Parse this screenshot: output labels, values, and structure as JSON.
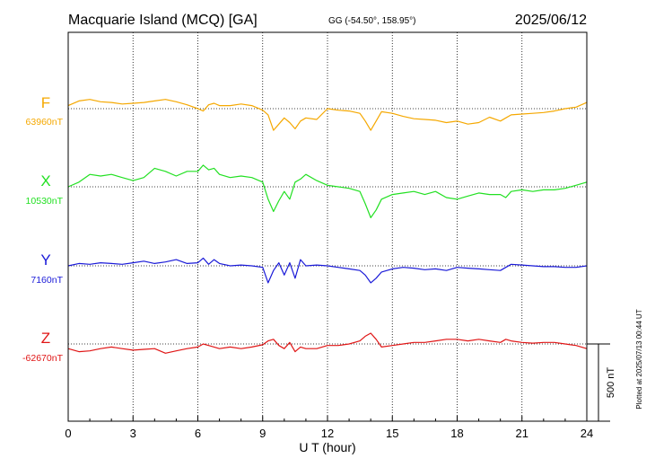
{
  "header": {
    "station": "Macquarie Island (MCQ)  [GA]",
    "coords": "GG (-54.50°, 158.95°)",
    "date": "2025/06/12"
  },
  "footer": {
    "plotted": "Plotted at 2025/07/13 00:44 UT",
    "scale_label": "500 nT"
  },
  "chart_data": {
    "type": "line",
    "xlabel": "U T (hour)",
    "xlim": [
      0,
      24
    ],
    "x_ticks": [
      "0",
      "3",
      "6",
      "9",
      "12",
      "15",
      "18",
      "21",
      "24"
    ],
    "grid": true,
    "scale_bar_nT": 500,
    "x": [
      0,
      0.5,
      1,
      1.5,
      2,
      2.5,
      3,
      3.5,
      4,
      4.5,
      5,
      5.5,
      6,
      6.25,
      6.5,
      6.75,
      7,
      7.5,
      8,
      8.5,
      9,
      9.25,
      9.5,
      9.75,
      10,
      10.25,
      10.5,
      10.75,
      11,
      11.5,
      12,
      12.5,
      13,
      13.5,
      13.75,
      14,
      14.25,
      14.5,
      15,
      15.5,
      16,
      16.5,
      17,
      17.5,
      18,
      18.5,
      19,
      19.5,
      20,
      20.25,
      20.5,
      21,
      21.5,
      22,
      22.5,
      23,
      23.5,
      24
    ],
    "series": [
      {
        "name": "F",
        "baseline_label": "63960nT",
        "baseline": 63960,
        "color": "#f5a800",
        "values": [
          63980,
          64010,
          64020,
          64005,
          64000,
          63990,
          63995,
          64000,
          64010,
          64020,
          64005,
          63985,
          63960,
          63945,
          63985,
          63995,
          63980,
          63980,
          63990,
          63980,
          63950,
          63920,
          63820,
          63860,
          63900,
          63870,
          63830,
          63880,
          63900,
          63890,
          63960,
          63950,
          63945,
          63930,
          63880,
          63820,
          63880,
          63940,
          63930,
          63910,
          63895,
          63890,
          63885,
          63870,
          63880,
          63860,
          63870,
          63905,
          63880,
          63900,
          63920,
          63925,
          63930,
          63935,
          63945,
          63960,
          63970,
          64000
        ]
      },
      {
        "name": "X",
        "baseline_label": "10530nT",
        "baseline": 10530,
        "color": "#22e022",
        "values": [
          10530,
          10560,
          10610,
          10600,
          10610,
          10590,
          10570,
          10590,
          10650,
          10630,
          10600,
          10630,
          10630,
          10670,
          10640,
          10650,
          10610,
          10590,
          10600,
          10590,
          10560,
          10450,
          10370,
          10440,
          10500,
          10450,
          10560,
          10580,
          10610,
          10570,
          10540,
          10530,
          10520,
          10500,
          10420,
          10330,
          10380,
          10450,
          10480,
          10490,
          10500,
          10480,
          10500,
          10460,
          10450,
          10470,
          10490,
          10480,
          10480,
          10460,
          10500,
          10510,
          10500,
          10510,
          10510,
          10520,
          10540,
          10560
        ]
      },
      {
        "name": "Y",
        "baseline_label": "7160nT",
        "baseline": 7160,
        "color": "#1a1ad8",
        "values": [
          7160,
          7175,
          7170,
          7180,
          7175,
          7170,
          7180,
          7190,
          7175,
          7185,
          7200,
          7175,
          7180,
          7210,
          7170,
          7200,
          7175,
          7160,
          7165,
          7160,
          7150,
          7050,
          7130,
          7180,
          7100,
          7180,
          7080,
          7200,
          7160,
          7165,
          7160,
          7150,
          7140,
          7130,
          7100,
          7050,
          7080,
          7120,
          7140,
          7150,
          7145,
          7135,
          7140,
          7130,
          7150,
          7145,
          7140,
          7135,
          7130,
          7150,
          7170,
          7165,
          7160,
          7155,
          7155,
          7150,
          7150,
          7160
        ]
      },
      {
        "name": "Z",
        "baseline_label": "-62670nT",
        "baseline": -62670,
        "color": "#e01515",
        "values": [
          -62700,
          -62720,
          -62715,
          -62700,
          -62690,
          -62700,
          -62710,
          -62705,
          -62700,
          -62730,
          -62715,
          -62700,
          -62690,
          -62670,
          -62680,
          -62690,
          -62700,
          -62690,
          -62700,
          -62690,
          -62675,
          -62650,
          -62640,
          -62680,
          -62700,
          -62660,
          -62720,
          -62690,
          -62700,
          -62700,
          -62680,
          -62680,
          -62670,
          -62650,
          -62620,
          -62600,
          -62640,
          -62690,
          -62680,
          -62670,
          -62660,
          -62660,
          -62650,
          -62640,
          -62640,
          -62650,
          -62640,
          -62650,
          -62660,
          -62640,
          -62650,
          -62660,
          -62665,
          -62660,
          -62660,
          -62670,
          -62680,
          -62700
        ]
      }
    ]
  }
}
